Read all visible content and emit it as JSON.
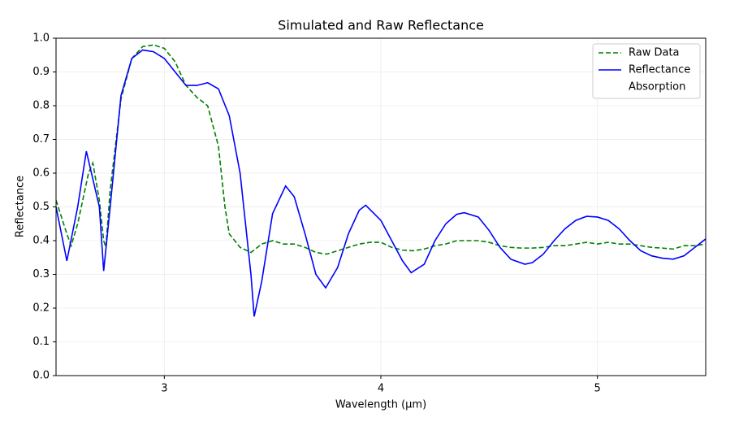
{
  "chart_data": {
    "type": "line",
    "title": "Simulated and Raw Reflectance",
    "x_label": "Wavelength (µm)",
    "y_label": "Reflectance",
    "xlim": [
      2.5,
      5.5
    ],
    "ylim": [
      0,
      1
    ],
    "xticks": [
      3,
      4,
      5
    ],
    "yticks": [
      {
        "value": 0,
        "label": "0.0"
      },
      0.1,
      0.2,
      0.3,
      0.4,
      0.5,
      0.6,
      0.7,
      0.8,
      0.9,
      {
        "value": 1,
        "label": "1.0"
      }
    ],
    "grid": true,
    "legend": "upper right",
    "series": [
      {
        "name": "Raw Data",
        "color": "green",
        "dash": "dashed",
        "x": [
          2.5,
          2.55,
          2.57,
          2.6,
          2.65,
          2.67,
          2.7,
          2.72,
          2.73,
          2.75,
          2.8,
          2.85,
          2.9,
          2.95,
          3.0,
          3.05,
          3.1,
          3.15,
          3.2,
          3.25,
          3.28,
          3.3,
          3.35,
          3.4,
          3.45,
          3.5,
          3.55,
          3.6,
          3.65,
          3.7,
          3.75,
          3.8,
          3.85,
          3.9,
          3.95,
          4.0,
          4.05,
          4.1,
          4.15,
          4.2,
          4.25,
          4.3,
          4.35,
          4.4,
          4.45,
          4.5,
          4.55,
          4.6,
          4.65,
          4.7,
          4.75,
          4.8,
          4.85,
          4.9,
          4.95,
          5.0,
          5.05,
          5.1,
          5.15,
          5.2,
          5.25,
          5.3,
          5.35,
          5.4,
          5.45,
          5.5
        ],
        "values": [
          0.52,
          0.42,
          0.385,
          0.45,
          0.6,
          0.63,
          0.52,
          0.4,
          0.38,
          0.55,
          0.82,
          0.94,
          0.975,
          0.98,
          0.97,
          0.93,
          0.86,
          0.825,
          0.8,
          0.68,
          0.5,
          0.42,
          0.38,
          0.365,
          0.39,
          0.4,
          0.39,
          0.39,
          0.38,
          0.365,
          0.36,
          0.37,
          0.38,
          0.39,
          0.395,
          0.395,
          0.38,
          0.372,
          0.37,
          0.375,
          0.385,
          0.39,
          0.4,
          0.4,
          0.4,
          0.395,
          0.385,
          0.38,
          0.378,
          0.378,
          0.38,
          0.385,
          0.385,
          0.39,
          0.395,
          0.39,
          0.395,
          0.39,
          0.39,
          0.385,
          0.38,
          0.378,
          0.375,
          0.385,
          0.385,
          0.39
        ]
      },
      {
        "name": "Reflectance",
        "color": "blue",
        "dash": "solid",
        "x": [
          2.5,
          2.55,
          2.6,
          2.64,
          2.7,
          2.72,
          2.75,
          2.8,
          2.85,
          2.9,
          2.95,
          3.0,
          3.05,
          3.1,
          3.15,
          3.2,
          3.25,
          3.3,
          3.35,
          3.4,
          3.415,
          3.45,
          3.5,
          3.56,
          3.6,
          3.65,
          3.7,
          3.745,
          3.8,
          3.85,
          3.9,
          3.93,
          4.0,
          4.05,
          4.1,
          4.14,
          4.2,
          4.25,
          4.3,
          4.35,
          4.385,
          4.45,
          4.5,
          4.55,
          4.6,
          4.665,
          4.7,
          4.75,
          4.8,
          4.85,
          4.9,
          4.95,
          5.0,
          5.05,
          5.1,
          5.15,
          5.2,
          5.25,
          5.3,
          5.35,
          5.4,
          5.45,
          5.5
        ],
        "values": [
          0.5,
          0.34,
          0.5,
          0.665,
          0.5,
          0.31,
          0.5,
          0.83,
          0.94,
          0.965,
          0.96,
          0.94,
          0.9,
          0.86,
          0.86,
          0.868,
          0.85,
          0.77,
          0.6,
          0.3,
          0.175,
          0.28,
          0.48,
          0.562,
          0.53,
          0.42,
          0.3,
          0.26,
          0.32,
          0.42,
          0.49,
          0.505,
          0.46,
          0.4,
          0.34,
          0.305,
          0.33,
          0.4,
          0.45,
          0.478,
          0.483,
          0.47,
          0.43,
          0.38,
          0.345,
          0.33,
          0.335,
          0.36,
          0.4,
          0.435,
          0.46,
          0.472,
          0.47,
          0.46,
          0.435,
          0.4,
          0.37,
          0.355,
          0.348,
          0.345,
          0.355,
          0.38,
          0.405
        ]
      },
      {
        "name": "Absorption",
        "color": "white",
        "dash": "solid"
      }
    ]
  }
}
